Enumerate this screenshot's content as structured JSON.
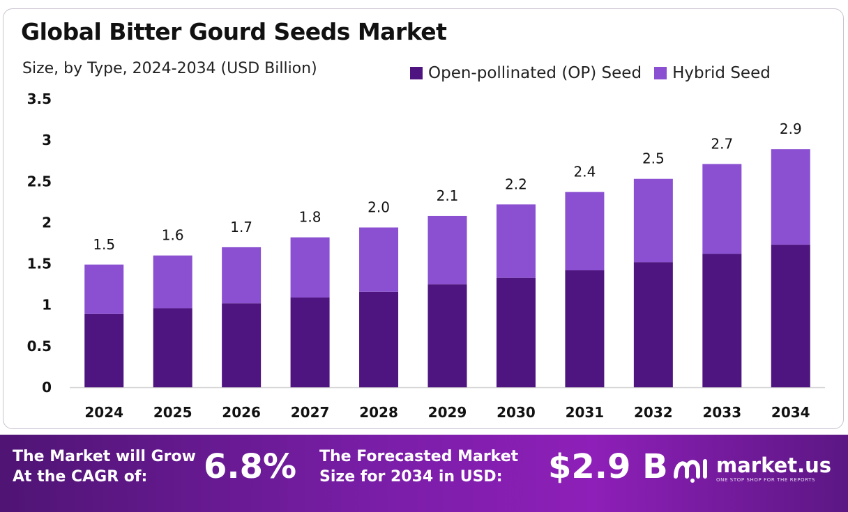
{
  "chart_data": {
    "type": "bar",
    "stacked": true,
    "title": "Global Bitter Gourd Seeds Market",
    "subtitle": "Size, by Type, 2024-2034 (USD Billion)",
    "categories": [
      "2024",
      "2025",
      "2026",
      "2027",
      "2028",
      "2029",
      "2030",
      "2031",
      "2032",
      "2033",
      "2034"
    ],
    "series": [
      {
        "name": "Open-pollinated (OP) Seed",
        "color": "#4e1580",
        "values": [
          0.89,
          0.96,
          1.02,
          1.09,
          1.16,
          1.25,
          1.33,
          1.42,
          1.52,
          1.62,
          1.73
        ]
      },
      {
        "name": "Hybrid Seed",
        "color": "#8a50d1",
        "values": [
          0.6,
          0.64,
          0.68,
          0.73,
          0.78,
          0.83,
          0.89,
          0.95,
          1.01,
          1.09,
          1.16
        ]
      }
    ],
    "totals": [
      "1.5",
      "1.6",
      "1.7",
      "1.8",
      "2.0",
      "2.1",
      "2.2",
      "2.4",
      "2.5",
      "2.7",
      "2.9"
    ],
    "ylim": [
      0,
      3.5
    ],
    "yticks": [
      "0",
      "0.5",
      "1",
      "1.5",
      "2",
      "2.5",
      "3",
      "3.5"
    ],
    "legend_position": "top-right",
    "grid": false
  },
  "footer": {
    "cagr_label_line1": "The Market will Grow",
    "cagr_label_line2": "At the CAGR of:",
    "cagr_value": "6.8%",
    "forecast_label_line1": "The Forecasted Market",
    "forecast_label_line2": "Size for 2034 in USD:",
    "forecast_value": "$2.9 B",
    "brand_name": "market.us",
    "brand_tagline": "ONE STOP SHOP FOR THE REPORTS"
  },
  "colors": {
    "footer_bg": "#7a1ea8",
    "op_seed": "#4e1580",
    "hybrid_seed": "#8a50d1"
  }
}
